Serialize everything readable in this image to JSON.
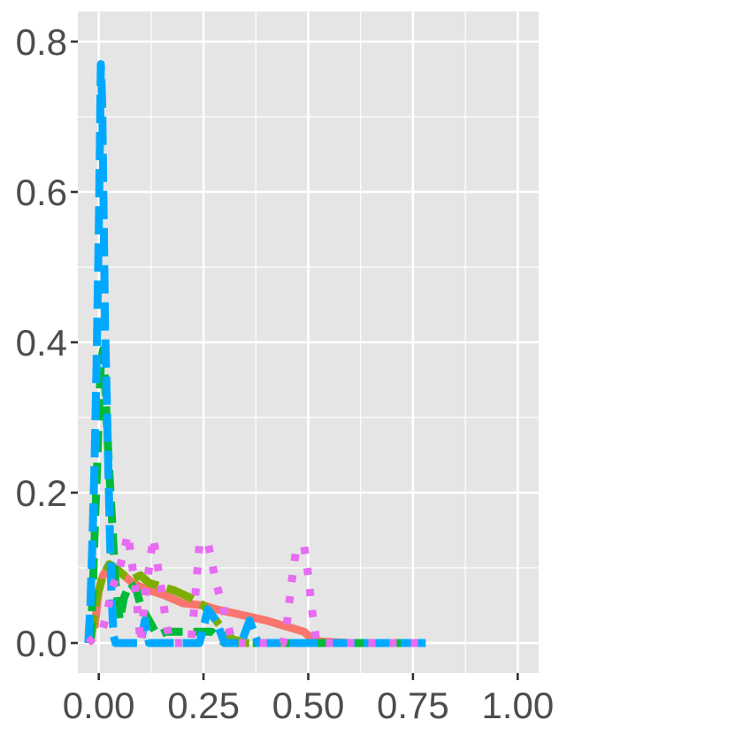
{
  "chart_data": {
    "type": "line",
    "title": "",
    "xlabel": "",
    "ylabel": "",
    "xlim": [
      -0.05,
      1.05
    ],
    "ylim": [
      -0.04,
      0.84
    ],
    "x_ticks": [
      0.0,
      0.25,
      0.5,
      0.75,
      1.0
    ],
    "x_tick_labels": [
      "0.00",
      "0.25",
      "0.50",
      "0.75",
      "1.00"
    ],
    "y_ticks": [
      0.0,
      0.2,
      0.4,
      0.6,
      0.8
    ],
    "y_tick_labels": [
      "0.0",
      "0.2",
      "0.4",
      "0.6",
      "0.8"
    ],
    "grid": true,
    "legend": "none",
    "background": "#e5e5e5",
    "gridline_color": "#ffffff",
    "series": [
      {
        "color": "#f8766d",
        "linestyle": "solid",
        "points": [
          [
            -0.01,
            0.02
          ],
          [
            0.0,
            0.07
          ],
          [
            0.01,
            0.09
          ],
          [
            0.025,
            0.1
          ],
          [
            0.04,
            0.1
          ],
          [
            0.06,
            0.09
          ],
          [
            0.08,
            0.08
          ],
          [
            0.1,
            0.075
          ],
          [
            0.12,
            0.07
          ],
          [
            0.15,
            0.065
          ],
          [
            0.18,
            0.058
          ],
          [
            0.2,
            0.053
          ],
          [
            0.25,
            0.05
          ],
          [
            0.28,
            0.045
          ],
          [
            0.32,
            0.04
          ],
          [
            0.36,
            0.035
          ],
          [
            0.4,
            0.03
          ],
          [
            0.43,
            0.025
          ],
          [
            0.46,
            0.02
          ],
          [
            0.49,
            0.015
          ],
          [
            0.51,
            0.005
          ],
          [
            0.53,
            0.002
          ],
          [
            0.6,
            0.0
          ],
          [
            0.7,
            0.0
          ],
          [
            0.78,
            0.0
          ]
        ]
      },
      {
        "color": "#7cae00",
        "linestyle": "longdash",
        "points": [
          [
            -0.02,
            0.0
          ],
          [
            -0.005,
            0.06
          ],
          [
            0.01,
            0.09
          ],
          [
            0.025,
            0.105
          ],
          [
            0.04,
            0.1
          ],
          [
            0.06,
            0.09
          ],
          [
            0.08,
            0.085
          ],
          [
            0.1,
            0.09
          ],
          [
            0.12,
            0.08
          ],
          [
            0.15,
            0.075
          ],
          [
            0.18,
            0.07
          ],
          [
            0.2,
            0.065
          ],
          [
            0.22,
            0.06
          ],
          [
            0.25,
            0.05
          ],
          [
            0.28,
            0.03
          ],
          [
            0.3,
            0.015
          ],
          [
            0.32,
            0.005
          ],
          [
            0.35,
            0.0
          ],
          [
            0.4,
            0.0
          ],
          [
            0.5,
            0.0
          ],
          [
            0.6,
            0.0
          ],
          [
            0.7,
            0.0
          ],
          [
            0.78,
            0.0
          ]
        ]
      },
      {
        "color": "#00ba38",
        "linestyle": "dashed",
        "points": [
          [
            -0.02,
            0.0
          ],
          [
            -0.015,
            0.06
          ],
          [
            -0.01,
            0.14
          ],
          [
            -0.005,
            0.22
          ],
          [
            0.0,
            0.3
          ],
          [
            0.005,
            0.37
          ],
          [
            0.01,
            0.39
          ],
          [
            0.015,
            0.35
          ],
          [
            0.02,
            0.28
          ],
          [
            0.03,
            0.18
          ],
          [
            0.04,
            0.08
          ],
          [
            0.05,
            0.03
          ],
          [
            0.06,
            0.06
          ],
          [
            0.075,
            0.08
          ],
          [
            0.09,
            0.07
          ],
          [
            0.1,
            0.05
          ],
          [
            0.12,
            0.03
          ],
          [
            0.14,
            0.01
          ],
          [
            0.16,
            0.015
          ],
          [
            0.2,
            0.015
          ],
          [
            0.24,
            0.015
          ],
          [
            0.27,
            0.015
          ],
          [
            0.3,
            0.0
          ],
          [
            0.4,
            0.0
          ],
          [
            0.5,
            0.0
          ],
          [
            0.6,
            0.0
          ],
          [
            0.7,
            0.0
          ],
          [
            0.78,
            0.0
          ]
        ]
      },
      {
        "color": "#00a9ff",
        "linestyle": "longdash",
        "points": [
          [
            -0.025,
            0.0
          ],
          [
            -0.02,
            0.05
          ],
          [
            -0.015,
            0.14
          ],
          [
            -0.01,
            0.24
          ],
          [
            -0.005,
            0.38
          ],
          [
            0.0,
            0.55
          ],
          [
            0.003,
            0.68
          ],
          [
            0.005,
            0.77
          ],
          [
            0.008,
            0.72
          ],
          [
            0.012,
            0.55
          ],
          [
            0.015,
            0.42
          ],
          [
            0.02,
            0.3
          ],
          [
            0.025,
            0.18
          ],
          [
            0.03,
            0.07
          ],
          [
            0.035,
            0.01
          ],
          [
            0.04,
            0.0
          ],
          [
            0.06,
            0.0
          ],
          [
            0.1,
            0.0
          ],
          [
            0.11,
            0.03
          ],
          [
            0.12,
            0.0
          ],
          [
            0.2,
            0.0
          ],
          [
            0.24,
            0.0
          ],
          [
            0.25,
            0.02
          ],
          [
            0.26,
            0.045
          ],
          [
            0.28,
            0.03
          ],
          [
            0.3,
            0.0
          ],
          [
            0.34,
            0.0
          ],
          [
            0.36,
            0.03
          ],
          [
            0.38,
            0.0
          ],
          [
            0.45,
            0.0
          ],
          [
            0.5,
            0.0
          ],
          [
            0.6,
            0.0
          ],
          [
            0.7,
            0.0
          ],
          [
            0.78,
            0.0
          ]
        ]
      },
      {
        "color": "#e76bf3",
        "linestyle": "dotted",
        "points": [
          [
            -0.025,
            0.0
          ],
          [
            0.01,
            0.02
          ],
          [
            0.02,
            0.04
          ],
          [
            0.03,
            0.07
          ],
          [
            0.05,
            0.1
          ],
          [
            0.07,
            0.145
          ],
          [
            0.09,
            0.06
          ],
          [
            0.1,
            0.0
          ],
          [
            0.11,
            0.06
          ],
          [
            0.12,
            0.1
          ],
          [
            0.13,
            0.14
          ],
          [
            0.15,
            0.07
          ],
          [
            0.16,
            0.03
          ],
          [
            0.17,
            0.0
          ],
          [
            0.22,
            0.0
          ],
          [
            0.23,
            0.06
          ],
          [
            0.24,
            0.13
          ],
          [
            0.26,
            0.135
          ],
          [
            0.28,
            0.08
          ],
          [
            0.3,
            0.04
          ],
          [
            0.32,
            0.0
          ],
          [
            0.4,
            0.0
          ],
          [
            0.44,
            0.0
          ],
          [
            0.45,
            0.03
          ],
          [
            0.46,
            0.08
          ],
          [
            0.47,
            0.12
          ],
          [
            0.49,
            0.13
          ],
          [
            0.5,
            0.09
          ],
          [
            0.51,
            0.04
          ],
          [
            0.52,
            0.0
          ],
          [
            0.6,
            0.0
          ],
          [
            0.7,
            0.0
          ],
          [
            0.78,
            0.0
          ]
        ]
      }
    ]
  }
}
